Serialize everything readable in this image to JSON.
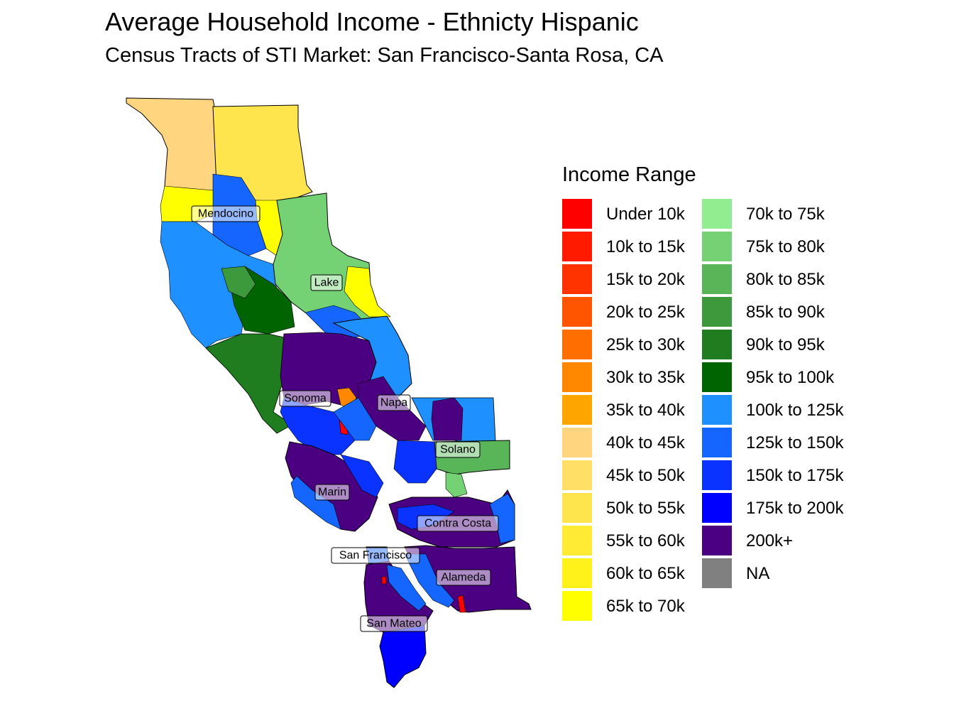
{
  "title": "Average Household Income - Ethnicty Hispanic",
  "subtitle": "Census Tracts of STI Market: San Francisco-Santa Rosa, CA",
  "legend": {
    "title": "Income Range",
    "items": [
      {
        "label": "Under 10k",
        "color": "#FF0000"
      },
      {
        "label": "10k to 15k",
        "color": "#FF1A00"
      },
      {
        "label": "15k to 20k",
        "color": "#FF3300"
      },
      {
        "label": "20k to 25k",
        "color": "#FF5500"
      },
      {
        "label": "25k to 30k",
        "color": "#FF6E00"
      },
      {
        "label": "30k to 35k",
        "color": "#FF8800"
      },
      {
        "label": "35k to 40k",
        "color": "#FFA500"
      },
      {
        "label": "40k to 45k",
        "color": "#FFD580"
      },
      {
        "label": "45k to 50k",
        "color": "#FFDF66"
      },
      {
        "label": "50k to 55k",
        "color": "#FFE54D"
      },
      {
        "label": "55k to 60k",
        "color": "#FFEB33"
      },
      {
        "label": "60k to 65k",
        "color": "#FFF21A"
      },
      {
        "label": "65k to 70k",
        "color": "#FFFF00"
      },
      {
        "label": "70k to 75k",
        "color": "#90EE90"
      },
      {
        "label": "75k to 80k",
        "color": "#74D174"
      },
      {
        "label": "80k to 85k",
        "color": "#58B558"
      },
      {
        "label": "85k to 90k",
        "color": "#3C993C"
      },
      {
        "label": "90k to 95k",
        "color": "#1F7D1F"
      },
      {
        "label": "95k to 100k",
        "color": "#006400"
      },
      {
        "label": "100k to 125k",
        "color": "#1E90FF"
      },
      {
        "label": "125k to 150k",
        "color": "#1466FF"
      },
      {
        "label": "150k to 175k",
        "color": "#0A33FF"
      },
      {
        "label": "175k to 200k",
        "color": "#0000FF"
      },
      {
        "label": "200k+",
        "color": "#4B0082"
      },
      {
        "label": "NA",
        "color": "#808080"
      }
    ]
  },
  "counties": [
    "Mendocino",
    "Lake",
    "Sonoma",
    "Napa",
    "Solano",
    "Marin",
    "Contra Costa",
    "San Francisco",
    "Alameda",
    "San Mateo"
  ]
}
